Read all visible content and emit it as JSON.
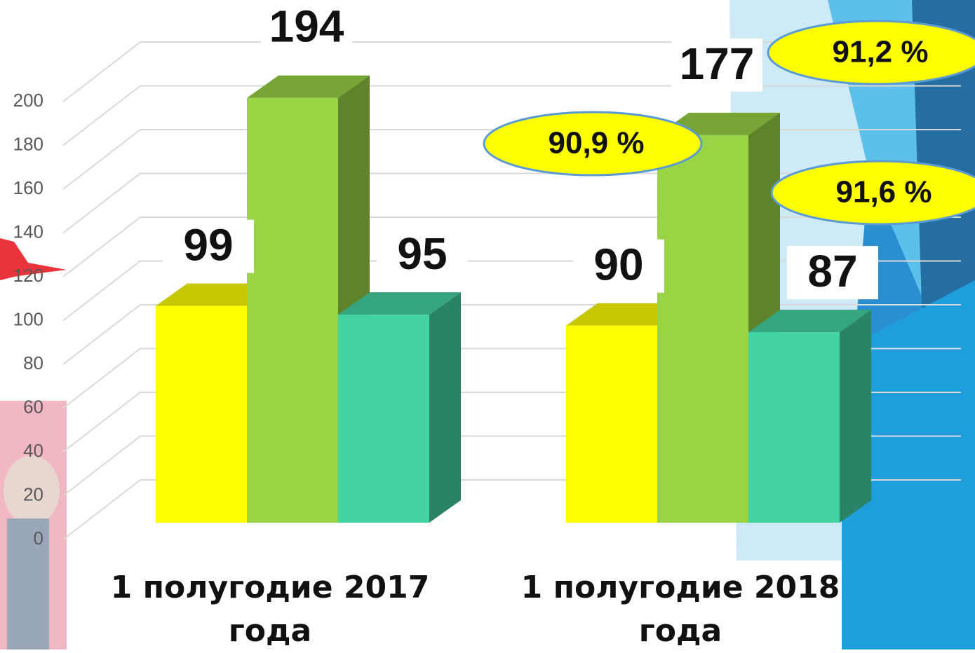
{
  "chart_data": {
    "type": "bar3d",
    "categories": [
      "1 полугодие 2017 года",
      "1 полугодие 2018 года"
    ],
    "series": [
      {
        "color": "#ffff00",
        "values": [
          99,
          90
        ]
      },
      {
        "color": "#99d444",
        "values": [
          194,
          177
        ]
      },
      {
        "color": "#44d4a4",
        "values": [
          95,
          87
        ]
      }
    ],
    "ylim": [
      0,
      200
    ],
    "yticks": [
      0,
      20,
      40,
      60,
      80,
      100,
      120,
      140,
      160,
      180,
      200
    ],
    "grid": true,
    "annotations": [
      "90,9 %",
      "91,2 %",
      "91,6 %"
    ]
  }
}
